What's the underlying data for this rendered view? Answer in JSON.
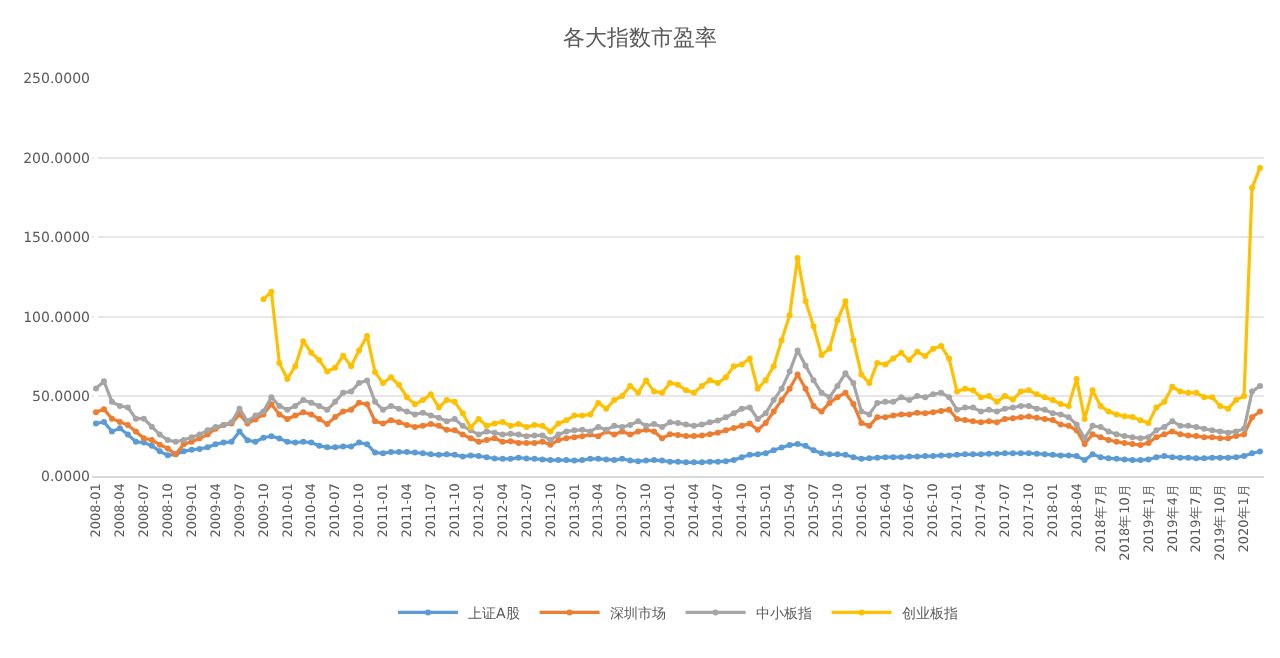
{
  "chart_data": {
    "type": "line",
    "title": "各大指数市盈率",
    "categories": [
      "2008-01",
      null,
      null,
      "2008-04",
      null,
      null,
      "2008-07",
      null,
      null,
      "2008-10",
      null,
      null,
      "2009-01",
      null,
      null,
      "2009-04",
      null,
      null,
      "2009-07",
      null,
      null,
      "2009-10",
      null,
      null,
      "2010-01",
      null,
      null,
      "2010-04",
      null,
      null,
      "2010-07",
      null,
      null,
      "2010-10",
      null,
      null,
      "2011-01",
      null,
      null,
      "2011-04",
      null,
      null,
      "2011-07",
      null,
      null,
      "2011-10",
      null,
      null,
      "2012-01",
      null,
      null,
      "2012-04",
      null,
      null,
      "2012-07",
      null,
      null,
      "2012-10",
      null,
      null,
      "2013-01",
      null,
      null,
      "2013-04",
      null,
      null,
      "2013-07",
      null,
      null,
      "2013-10",
      null,
      null,
      "2014-01",
      null,
      null,
      "2014-04",
      null,
      null,
      "2014-07",
      null,
      null,
      "2014-10",
      null,
      null,
      "2015-01",
      null,
      null,
      "2015-04",
      null,
      null,
      "2015-07",
      null,
      null,
      "2015-10",
      null,
      null,
      "2016-01",
      null,
      null,
      "2016-04",
      null,
      null,
      "2016-07",
      null,
      null,
      "2016-10",
      null,
      null,
      "2017-01",
      null,
      null,
      "2017-04",
      null,
      null,
      "2017-07",
      null,
      null,
      "2017-10",
      null,
      null,
      "2018-01",
      null,
      null,
      "2018-04",
      null,
      null,
      "2018年7月",
      null,
      null,
      "2018年10月",
      null,
      null,
      "2019年1月",
      null,
      null,
      "2019年4月",
      null,
      null,
      "2019年7月",
      null,
      null,
      "2019年10月",
      null,
      null,
      "2020年1月",
      null,
      null
    ],
    "series": [
      {
        "name": "上证A股",
        "color": "#5b9bd5",
        "values": [
          33,
          34,
          28,
          30,
          26,
          21.5,
          21,
          19,
          15.5,
          13,
          13.6,
          15.5,
          16.5,
          17,
          18,
          20,
          21,
          21.5,
          28,
          22.5,
          21.5,
          24,
          25,
          23.6,
          21.5,
          21,
          21.5,
          21,
          19,
          18,
          18,
          18.6,
          18.6,
          21,
          20,
          14.7,
          14.3,
          15,
          15,
          15,
          14.7,
          14.3,
          13.6,
          13.3,
          13.6,
          13.3,
          12.2,
          12.9,
          12.5,
          11.8,
          11,
          10.8,
          10.8,
          11.5,
          11,
          10.8,
          10.4,
          10,
          10,
          10,
          9.7,
          10,
          10.8,
          10.8,
          10.4,
          10,
          10.8,
          9.7,
          9.3,
          9.7,
          10,
          9.7,
          9,
          9,
          8.6,
          8.6,
          8.6,
          9,
          9,
          9.3,
          10,
          11.8,
          13.3,
          13.6,
          14.3,
          16.1,
          17.9,
          19.4,
          20.1,
          19,
          16.1,
          14.3,
          13.6,
          13.6,
          13.3,
          11.8,
          10.8,
          11.1,
          11.5,
          11.8,
          11.8,
          11.8,
          12.2,
          12.2,
          12.5,
          12.5,
          12.9,
          12.9,
          13.3,
          13.6,
          13.6,
          13.6,
          14,
          14,
          14.3,
          14.3,
          14.3,
          14.3,
          14,
          13.6,
          13.3,
          12.9,
          12.9,
          12.5,
          10,
          13.6,
          11.8,
          11.1,
          10.8,
          10.4,
          10,
          10,
          10.4,
          11.8,
          12.5,
          11.8,
          11.5,
          11.5,
          11.1,
          11.1,
          11.5,
          11.5,
          11.5,
          11.8,
          12.5,
          14.3,
          15.4
        ]
      },
      {
        "name": "深圳市场",
        "color": "#ed7d31",
        "values": [
          40,
          42,
          36,
          34,
          32,
          28,
          23.7,
          22.6,
          19.7,
          17.2,
          13.6,
          20,
          21.5,
          23.7,
          26,
          29.7,
          32,
          33,
          38.7,
          33,
          35.5,
          38.7,
          45,
          38.7,
          35.8,
          38,
          40,
          38.7,
          35.8,
          32.6,
          37,
          40.5,
          41.6,
          46,
          45,
          34.4,
          33,
          35,
          33.7,
          32,
          30.8,
          31.5,
          32.6,
          31.5,
          29,
          28.7,
          26,
          23.7,
          21.5,
          22.6,
          23.7,
          21.5,
          21.9,
          20.8,
          20.8,
          20.8,
          21.5,
          19.7,
          22.6,
          23.7,
          24.4,
          25,
          26,
          25,
          28,
          26,
          28,
          26,
          28,
          29,
          28,
          23.7,
          26.2,
          25.8,
          25.1,
          25.1,
          25.4,
          26.2,
          27.2,
          28.7,
          30.1,
          31.5,
          33,
          29,
          33.3,
          40.5,
          47.7,
          54.8,
          63.8,
          54.8,
          44,
          40.5,
          45.9,
          49.5,
          52.3,
          45.2,
          33.3,
          31.5,
          36.9,
          36.9,
          38,
          38.7,
          38.7,
          39.8,
          39.4,
          40.1,
          40.9,
          41.6,
          35.8,
          35.1,
          34.4,
          33.7,
          34.4,
          33.7,
          35.8,
          36.2,
          36.9,
          37.3,
          36.6,
          35.8,
          35.1,
          32.3,
          31.5,
          28.7,
          20.1,
          26.2,
          24.4,
          22.6,
          21.5,
          20.8,
          20.1,
          19.4,
          20.8,
          24.4,
          26.2,
          28,
          26.2,
          25.4,
          25.1,
          24.4,
          24.4,
          23.7,
          23.7,
          25.1,
          26.2,
          36.9,
          40.5
        ]
      },
      {
        "name": "中小板指",
        "color": "#a5a5a5",
        "values": [
          55,
          59.5,
          46.6,
          44,
          43,
          36,
          36,
          31,
          26,
          22.6,
          21.5,
          22.6,
          24.4,
          26,
          28.7,
          30.8,
          32,
          33.7,
          42.3,
          34.4,
          38,
          40.5,
          49.5,
          44,
          41.6,
          44,
          47.7,
          46,
          44,
          41.6,
          46.6,
          52.3,
          53,
          58.4,
          60,
          46.6,
          41.6,
          44,
          42.3,
          40.5,
          38.7,
          39.8,
          38,
          36.6,
          34.4,
          35.8,
          31.5,
          28.7,
          26,
          28,
          27.2,
          26,
          26.5,
          26,
          25,
          25.5,
          25.5,
          22.6,
          26,
          28,
          28.7,
          29,
          28,
          30.8,
          29,
          31.5,
          30.8,
          32,
          34.4,
          31.5,
          32.6,
          30.8,
          33.7,
          33.3,
          32.3,
          31.5,
          32.3,
          33.7,
          34.8,
          36.9,
          39.4,
          42.3,
          43,
          35.8,
          39.4,
          47.7,
          54.8,
          65.6,
          78.9,
          69.2,
          60.2,
          52.3,
          49.5,
          56.6,
          64.5,
          58.4,
          40.5,
          38.7,
          45.9,
          46.6,
          46.6,
          49.5,
          47.7,
          50.2,
          49.5,
          51.3,
          52.3,
          49.5,
          41.6,
          43,
          43,
          40.5,
          41.6,
          40.5,
          42.3,
          43,
          44,
          44,
          42.3,
          41.6,
          39.4,
          38.7,
          36.9,
          32.3,
          23.7,
          31.5,
          30.8,
          28,
          26.2,
          25.1,
          24.4,
          23.7,
          24.4,
          28.7,
          30.8,
          34.4,
          31.5,
          31.5,
          30.8,
          29.7,
          28.7,
          28,
          27.2,
          28,
          29.7,
          53,
          56.6
        ]
      },
      {
        "name": "创业板指",
        "color": "#ffc000",
        "values": [
          null,
          null,
          null,
          null,
          null,
          null,
          null,
          null,
          null,
          null,
          null,
          null,
          null,
          null,
          null,
          null,
          null,
          null,
          null,
          null,
          null,
          111,
          115.8,
          71,
          61,
          69,
          84.6,
          77.4,
          72.8,
          65.6,
          68,
          75.6,
          69,
          78.9,
          88,
          65.2,
          58.4,
          62,
          57.3,
          49.5,
          45,
          47.7,
          51.3,
          43,
          47.7,
          46.6,
          39.4,
          30.5,
          35.8,
          31.5,
          33,
          34,
          31.5,
          32.6,
          30.8,
          32,
          31.5,
          28,
          33,
          35,
          38,
          38,
          38.7,
          45.9,
          42.3,
          47.7,
          50.2,
          56.6,
          52.3,
          60,
          53,
          52.3,
          58.4,
          57.3,
          53.8,
          52.3,
          56.6,
          60.2,
          58.4,
          62,
          69,
          70,
          73.8,
          54.8,
          60.2,
          69,
          85.3,
          101,
          137,
          110,
          94,
          76,
          80,
          97.8,
          109.7,
          85.3,
          63.8,
          58.4,
          71,
          70,
          73.8,
          77.4,
          72.8,
          78,
          75.3,
          80,
          81.7,
          73.8,
          53,
          54.8,
          53.8,
          49.5,
          50.2,
          46.6,
          50.2,
          48,
          53,
          53.8,
          51.3,
          49.5,
          47.7,
          45.2,
          44,
          61,
          35.8,
          53.8,
          44,
          40.5,
          38.7,
          37.6,
          37,
          35,
          33.3,
          43,
          46.6,
          56,
          53,
          52.3,
          52.3,
          49.5,
          49.5,
          44,
          42.3,
          47.7,
          50.2,
          181,
          193.5
        ]
      }
    ],
    "ylim": [
      0,
      250
    ],
    "yticks": [
      {
        "value": 0,
        "label": "0.0000"
      },
      {
        "value": 50,
        "label": "50.0000"
      },
      {
        "value": 100,
        "label": "100.0000"
      },
      {
        "value": 150,
        "label": "150.0000"
      },
      {
        "value": 200,
        "label": "200.0000"
      },
      {
        "value": 250,
        "label": "250.0000"
      }
    ],
    "grid": "y",
    "legend": "bottom",
    "marker": "circle",
    "line_style": "solid"
  }
}
